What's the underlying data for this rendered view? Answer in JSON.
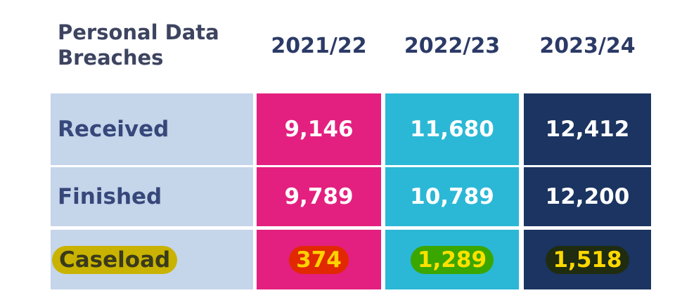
{
  "header": {
    "title": "Personal Data Breaches",
    "columns": [
      "2021/22",
      "2022/23",
      "2023/24"
    ]
  },
  "table": {
    "rows": [
      [
        "Received",
        "9,146",
        "11,680",
        "12,412"
      ],
      [
        "Finished",
        "9,789",
        "10,789",
        "12,200"
      ],
      [
        "Caseload",
        "374",
        "1,289",
        "1,518"
      ]
    ]
  }
}
